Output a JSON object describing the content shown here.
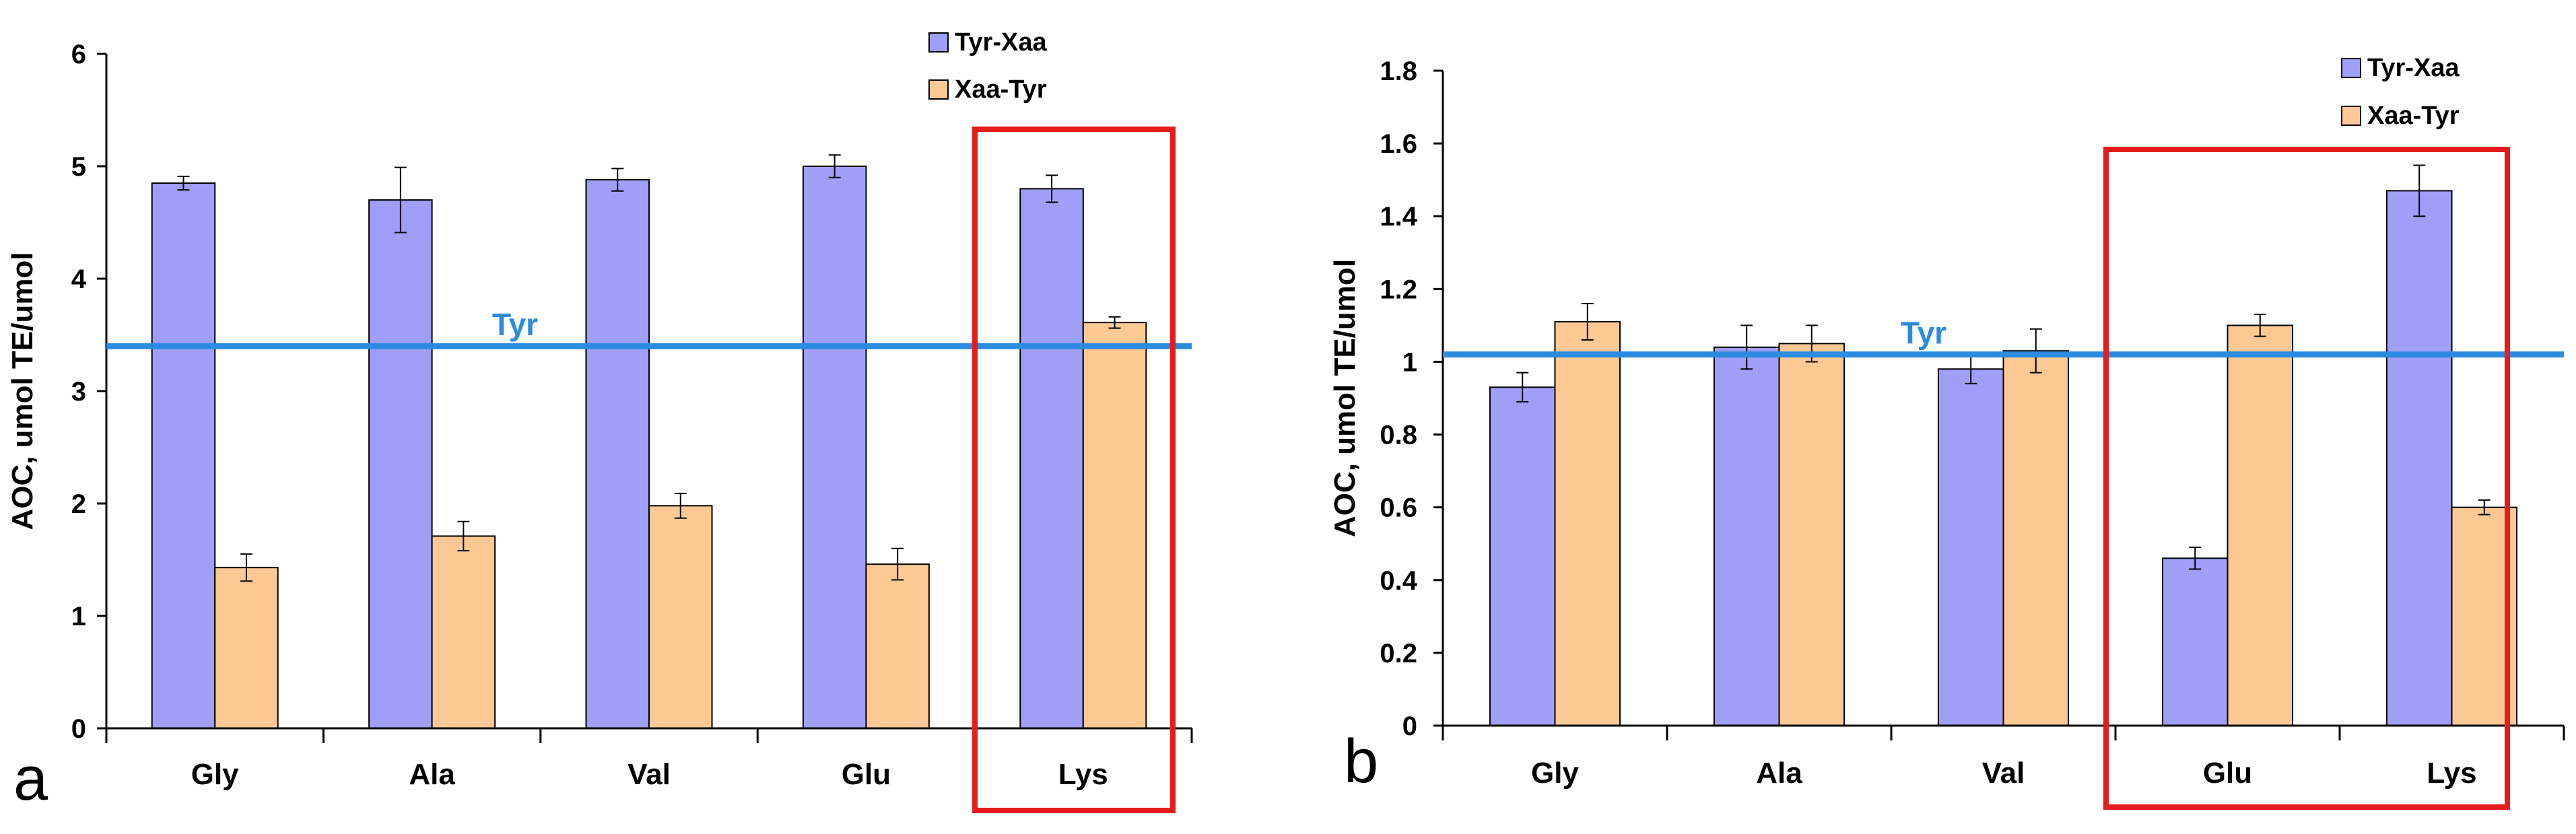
{
  "colors": {
    "tyr_xaa": "#9f9ff8",
    "xaa_tyr": "#fcc995",
    "tyr_line": "#2b8be0",
    "highlight": "#e51c1c",
    "axis": "#000000"
  },
  "chart_data": [
    {
      "panel": "a",
      "type": "bar",
      "title": "",
      "ylabel": "AOC, umol TE/umol",
      "xlabel": "",
      "ylim": [
        0,
        6
      ],
      "yticks": [
        "0",
        "1",
        "2",
        "3",
        "4",
        "5",
        "6"
      ],
      "categories": [
        "Gly",
        "Ala",
        "Val",
        "Glu",
        "Lys"
      ],
      "series": [
        {
          "name": "Tyr-Xaa",
          "values": [
            4.85,
            4.7,
            4.88,
            5.0,
            4.8
          ],
          "errors": [
            0.06,
            0.29,
            0.1,
            0.1,
            0.12
          ]
        },
        {
          "name": "Xaa-Tyr",
          "values": [
            1.43,
            1.71,
            1.98,
            1.46,
            3.61
          ],
          "errors": [
            0.12,
            0.13,
            0.11,
            0.14,
            0.05
          ]
        }
      ],
      "reference_line": {
        "label": "Tyr",
        "value": 3.4
      },
      "highlight_categories": [
        "Lys"
      ],
      "legend": "top-right",
      "grid": false
    },
    {
      "panel": "b",
      "type": "bar",
      "title": "",
      "ylabel": "AOC, umol TE/umol",
      "xlabel": "",
      "ylim": [
        0,
        1.8
      ],
      "yticks": [
        "0",
        "0.2",
        "0.4",
        "0.6",
        "0.8",
        "1",
        "1.2",
        "1.4",
        "1.6",
        "1.8"
      ],
      "categories": [
        "Gly",
        "Ala",
        "Val",
        "Glu",
        "Lys"
      ],
      "series": [
        {
          "name": "Tyr-Xaa",
          "values": [
            0.93,
            1.04,
            0.98,
            0.46,
            1.47
          ],
          "errors": [
            0.04,
            0.06,
            0.04,
            0.03,
            0.07
          ]
        },
        {
          "name": "Xaa-Tyr",
          "values": [
            1.11,
            1.05,
            1.03,
            1.1,
            0.6
          ],
          "errors": [
            0.05,
            0.05,
            0.06,
            0.03,
            0.02
          ]
        }
      ],
      "reference_line": {
        "label": "Tyr",
        "value": 1.02
      },
      "highlight_categories": [
        "Glu",
        "Lys"
      ],
      "legend": "top-right",
      "grid": false
    }
  ]
}
